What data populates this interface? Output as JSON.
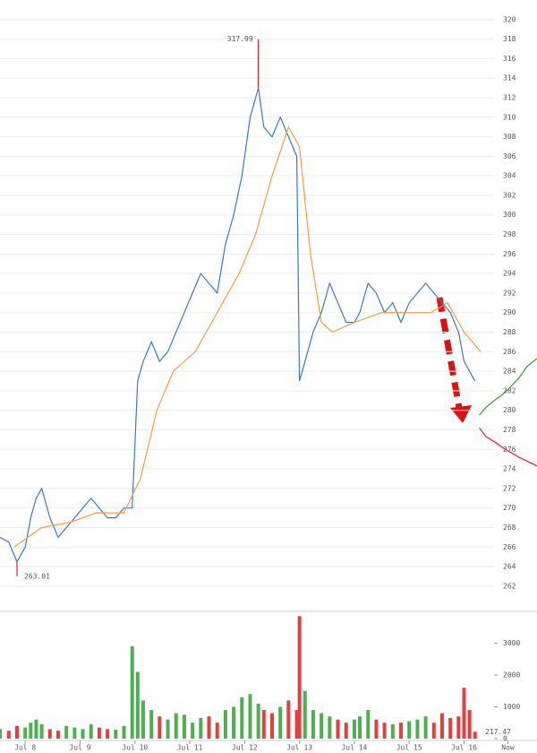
{
  "chart_data": [
    {
      "type": "line",
      "xlim": [
        7.54,
        17.33
      ],
      "ylim": [
        259.6,
        322.0
      ],
      "yticks": [
        262,
        264,
        266,
        268,
        270,
        272,
        274,
        276,
        278,
        280,
        282,
        284,
        286,
        288,
        290,
        292,
        294,
        296,
        298,
        300,
        302,
        304,
        306,
        308,
        310,
        312,
        314,
        316,
        318,
        320
      ],
      "grid": true,
      "high": 317.99,
      "low": 263.01,
      "series": [
        {
          "color": "#3a78c8",
          "x": [
            7.54,
            7.7,
            7.85,
            8.0,
            8.1,
            8.2,
            8.3,
            8.45,
            8.6,
            8.75,
            8.9,
            9.05,
            9.2,
            9.35,
            9.5,
            9.65,
            9.8,
            9.95,
            10.05,
            10.15,
            10.3,
            10.45,
            10.6,
            10.75,
            10.9,
            11.05,
            11.2,
            11.35,
            11.5,
            11.65,
            11.8,
            11.95,
            12.1,
            12.25,
            12.35,
            12.5,
            12.65,
            12.8,
            12.95,
            13.0,
            13.1,
            13.25,
            13.4,
            13.55,
            13.7,
            13.85,
            14.0,
            14.1,
            14.25,
            14.4,
            14.55,
            14.7,
            14.85,
            15.0,
            15.15,
            15.3,
            15.45,
            15.6,
            15.75,
            15.9,
            16.0,
            16.1,
            16.2
          ],
          "values": [
            267,
            266.5,
            264.5,
            266,
            269,
            271,
            272,
            269,
            267,
            268,
            269,
            270,
            271,
            270,
            269,
            269,
            270,
            270,
            283,
            285,
            287,
            285,
            286,
            288,
            290,
            292,
            294,
            293,
            292,
            297,
            300,
            304,
            310,
            313,
            309,
            308,
            310,
            308,
            306,
            283,
            285,
            288,
            290,
            293,
            291,
            289,
            289,
            290,
            293,
            292,
            290,
            291,
            289,
            291,
            292,
            293,
            292,
            291,
            290,
            288,
            285,
            284,
            283
          ]
        },
        {
          "color": "#f0a040",
          "x": [
            7.8,
            8.3,
            8.8,
            9.3,
            9.8,
            10.1,
            10.4,
            10.7,
            11.1,
            11.5,
            11.9,
            12.2,
            12.5,
            12.8,
            13.0,
            13.2,
            13.4,
            13.6,
            14.0,
            14.5,
            15.0,
            15.4,
            15.7,
            16.0,
            16.3
          ],
          "values": [
            266,
            268,
            268.5,
            269.5,
            269.5,
            273,
            280,
            284,
            286,
            290,
            294,
            298,
            304,
            309,
            307,
            296,
            289,
            288,
            289,
            290,
            290,
            290,
            291,
            288,
            286
          ]
        },
        {
          "color": "#2e9a2e",
          "x": [
            16.28,
            16.4,
            16.55,
            16.7,
            16.85,
            17.0,
            17.15,
            17.33
          ],
          "values": [
            279.5,
            280.3,
            281,
            281.6,
            282.4,
            283.3,
            284.5,
            285.3
          ]
        },
        {
          "color": "#d42020",
          "x": [
            16.28,
            16.4,
            16.55,
            16.7,
            16.85,
            17.0,
            17.15,
            17.33
          ],
          "values": [
            278.2,
            277.3,
            276.8,
            276.2,
            275.7,
            275.2,
            274.8,
            274.3
          ]
        }
      ]
    },
    {
      "type": "bar",
      "xlim": [
        7.54,
        17.33
      ],
      "ylim": [
        0,
        3915
      ],
      "yticks": [
        0,
        1000,
        2000,
        3000
      ],
      "xticks": [
        {
          "value": 8,
          "label": "Jul 8"
        },
        {
          "value": 9,
          "label": "Jul 9"
        },
        {
          "value": 10,
          "label": "Jul 10"
        },
        {
          "value": 11,
          "label": "Jul 11"
        },
        {
          "value": 12,
          "label": "Jul 12"
        },
        {
          "value": 13,
          "label": "Jul 13"
        },
        {
          "value": 14,
          "label": "Jul 14"
        },
        {
          "value": 15,
          "label": "Jul 15"
        },
        {
          "value": 16,
          "label": "Jul 16"
        },
        {
          "value": 16.8,
          "label": "Now"
        }
      ],
      "x": [
        7.54,
        7.7,
        7.85,
        8.0,
        8.1,
        8.2,
        8.3,
        8.45,
        8.6,
        8.75,
        8.9,
        9.05,
        9.2,
        9.35,
        9.5,
        9.65,
        9.8,
        9.95,
        10.05,
        10.15,
        10.3,
        10.45,
        10.6,
        10.75,
        10.9,
        11.05,
        11.2,
        11.35,
        11.5,
        11.65,
        11.8,
        11.95,
        12.1,
        12.25,
        12.35,
        12.5,
        12.65,
        12.8,
        12.95,
        13.0,
        13.1,
        13.25,
        13.4,
        13.55,
        13.7,
        13.85,
        14.0,
        14.1,
        14.25,
        14.4,
        14.55,
        14.7,
        14.85,
        15.0,
        15.15,
        15.3,
        15.45,
        15.6,
        15.75,
        15.9,
        16.0,
        16.1,
        16.2
      ],
      "values": [
        300,
        250,
        400,
        350,
        500,
        600,
        450,
        300,
        250,
        400,
        350,
        300,
        450,
        350,
        300,
        280,
        400,
        2900,
        2100,
        1200,
        900,
        700,
        600,
        800,
        750,
        500,
        650,
        700,
        500,
        900,
        1000,
        1300,
        1400,
        1100,
        900,
        800,
        1000,
        1200,
        900,
        3850,
        1500,
        900,
        800,
        700,
        600,
        500,
        600,
        700,
        900,
        600,
        500,
        450,
        500,
        550,
        600,
        700,
        500,
        800,
        650,
        700,
        1600,
        900,
        217.47
      ],
      "colors": [
        "#4caf50",
        "#e04040"
      ]
    }
  ]
}
